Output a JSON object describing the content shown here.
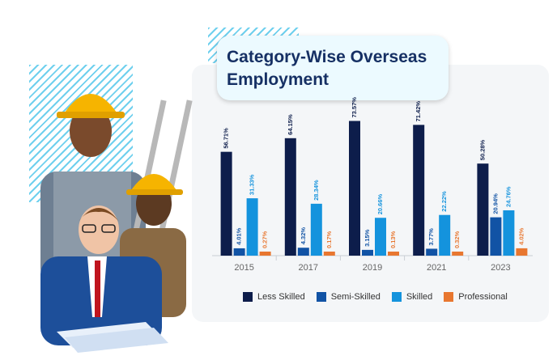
{
  "title": "Category-Wise Overseas Employment",
  "colors": {
    "less_skilled": "#0d1d4b",
    "semi_skilled": "#1153a5",
    "skilled": "#1493dd",
    "professional": "#e87730"
  },
  "chart_data": {
    "type": "bar",
    "categories": [
      "2015",
      "2017",
      "2019",
      "2021",
      "2023"
    ],
    "series": [
      {
        "name": "Less Skilled",
        "values": [
          56.71,
          64.15,
          73.57,
          71.42,
          50.28
        ],
        "labels": [
          "56.71%",
          "64.15%",
          "73.57%",
          "71.42%",
          "50.28%"
        ]
      },
      {
        "name": "Semi-Skilled",
        "values": [
          4.01,
          4.32,
          3.15,
          3.77,
          20.94
        ],
        "labels": [
          "4.01%",
          "4.32%",
          "3.15%",
          "3.77%",
          "20.94%"
        ]
      },
      {
        "name": "Skilled",
        "values": [
          31.33,
          28.34,
          20.66,
          22.22,
          24.76
        ],
        "labels": [
          "31.33%",
          "28.34%",
          "20.66%",
          "22.22%",
          "24.76%"
        ]
      },
      {
        "name": "Professional",
        "values": [
          0.27,
          0.17,
          0.13,
          0.32,
          4.02
        ],
        "labels": [
          "0.27%",
          "0.17%",
          "0.13%",
          "0.32%",
          "4.02%"
        ]
      }
    ],
    "ylim": [
      0,
      80
    ],
    "grid": false,
    "legend_position": "bottom"
  }
}
